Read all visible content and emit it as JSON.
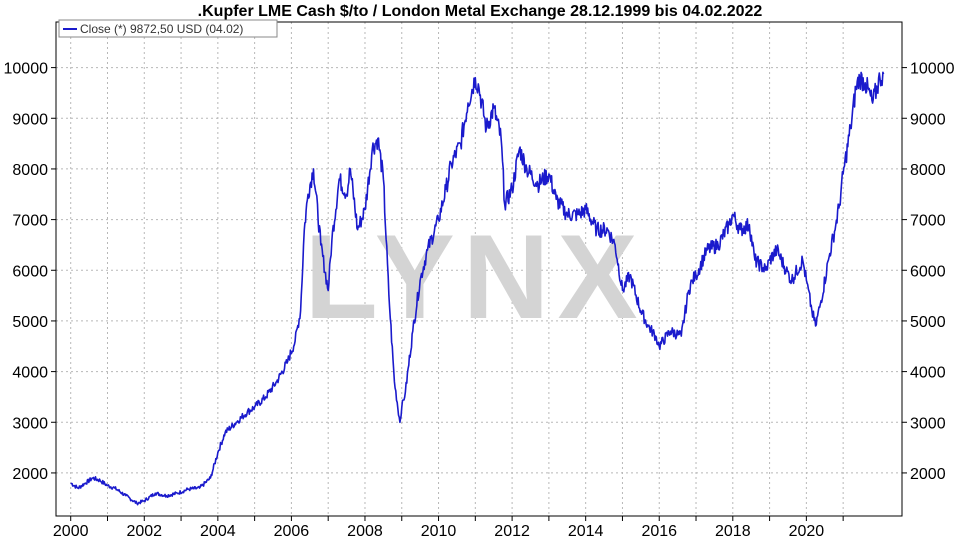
{
  "colors": {
    "series": "#1a1acc",
    "grid": "#b8b8b8",
    "frame": "#000000",
    "watermark": "#d4d4d4"
  },
  "watermark": "LYNX",
  "legend": {
    "label": "Close (*) 9872,50 USD (04.02)",
    "placement": "top-left"
  },
  "chart_data": {
    "type": "line",
    "title": ".Kupfer LME Cash $/to / London Metal Exchange 28.12.1999 bis 04.02.2022",
    "xlabel": "",
    "ylabel": "",
    "xlim": [
      1999.6,
      2022.6
    ],
    "ylim": [
      1150,
      10900
    ],
    "grid": true,
    "x_ticks": [
      2000,
      2002,
      2004,
      2006,
      2008,
      2010,
      2012,
      2014,
      2016,
      2018,
      2020
    ],
    "x_tick_labels": [
      "2000",
      "2002",
      "2004",
      "2006",
      "2008",
      "2010",
      "2012",
      "2014",
      "2016",
      "2018",
      "2020"
    ],
    "x_minor_ticks": [
      2001,
      2003,
      2005,
      2007,
      2009,
      2011,
      2013,
      2015,
      2017,
      2019,
      2021
    ],
    "y_ticks": [
      2000,
      3000,
      4000,
      5000,
      6000,
      7000,
      8000,
      9000,
      10000
    ],
    "y_tick_labels": [
      "2000",
      "3000",
      "4000",
      "5000",
      "6000",
      "7000",
      "8000",
      "9000",
      "10000"
    ],
    "series": [
      {
        "name": "Close (*)",
        "x": [
          2000.0,
          2000.2,
          2000.4,
          2000.6,
          2000.8,
          2001.0,
          2001.2,
          2001.5,
          2001.8,
          2002.0,
          2002.3,
          2002.6,
          2002.9,
          2003.2,
          2003.5,
          2003.8,
          2004.0,
          2004.2,
          2004.5,
          2004.8,
          2005.0,
          2005.3,
          2005.6,
          2005.9,
          2006.1,
          2006.25,
          2006.35,
          2006.45,
          2006.6,
          2006.8,
          2007.0,
          2007.1,
          2007.3,
          2007.5,
          2007.6,
          2007.8,
          2008.0,
          2008.2,
          2008.35,
          2008.5,
          2008.65,
          2008.8,
          2008.95,
          2009.0,
          2009.1,
          2009.3,
          2009.5,
          2009.7,
          2010.0,
          2010.2,
          2010.35,
          2010.6,
          2010.8,
          2011.0,
          2011.1,
          2011.3,
          2011.5,
          2011.7,
          2011.8,
          2012.0,
          2012.2,
          2012.4,
          2012.7,
          2013.0,
          2013.2,
          2013.5,
          2013.8,
          2014.0,
          2014.3,
          2014.6,
          2014.8,
          2015.0,
          2015.2,
          2015.5,
          2015.7,
          2015.9,
          2016.0,
          2016.3,
          2016.6,
          2016.8,
          2016.9,
          2017.0,
          2017.3,
          2017.6,
          2017.9,
          2018.0,
          2018.2,
          2018.45,
          2018.6,
          2018.9,
          2019.0,
          2019.2,
          2019.45,
          2019.6,
          2019.9,
          2020.0,
          2020.15,
          2020.25,
          2020.4,
          2020.6,
          2020.8,
          2020.9,
          2021.0,
          2021.2,
          2021.35,
          2021.45,
          2021.6,
          2021.8,
          2022.0,
          2022.1
        ],
        "values": [
          1800,
          1700,
          1800,
          1900,
          1850,
          1750,
          1700,
          1550,
          1400,
          1450,
          1600,
          1550,
          1600,
          1680,
          1700,
          1900,
          2400,
          2800,
          3000,
          3200,
          3300,
          3500,
          3800,
          4200,
          4600,
          5200,
          6800,
          7500,
          8000,
          6500,
          5600,
          6600,
          7800,
          7500,
          8000,
          6800,
          7200,
          8400,
          8600,
          7800,
          5500,
          3800,
          3000,
          3300,
          3600,
          4800,
          5800,
          6400,
          7000,
          7600,
          8100,
          8500,
          9300,
          9800,
          9600,
          8800,
          9200,
          8600,
          7300,
          7600,
          8400,
          8000,
          7700,
          7900,
          7400,
          7100,
          7100,
          7200,
          6800,
          6800,
          6500,
          5600,
          5900,
          5200,
          4900,
          4700,
          4500,
          4800,
          4700,
          5600,
          5800,
          5900,
          6400,
          6500,
          6900,
          7100,
          6800,
          6900,
          6200,
          6000,
          6200,
          6400,
          6000,
          5800,
          6200,
          5800,
          5200,
          4900,
          5400,
          6200,
          6900,
          7300,
          7900,
          8800,
          9600,
          9800,
          9700,
          9300,
          9800,
          9872
        ]
      }
    ]
  }
}
